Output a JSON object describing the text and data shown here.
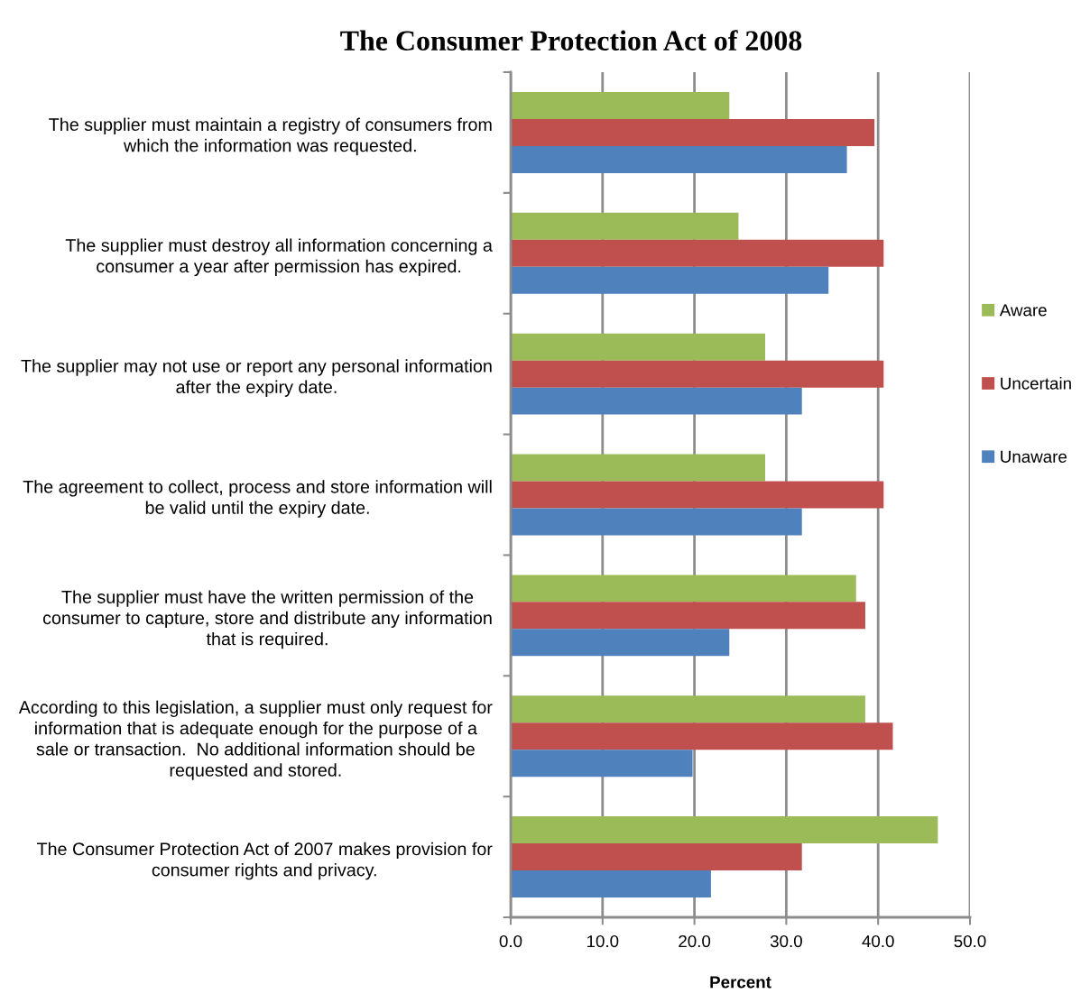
{
  "chart_data": {
    "type": "bar",
    "orientation": "horizontal",
    "title": "The Consumer Protection Act of 2008",
    "xlabel": "Percent",
    "categories": [
      "The supplier must maintain a registry of consumers from\nwhich the information was requested.",
      "The supplier must destroy all information concerning a\nconsumer a year after permission has expired.",
      "The supplier may not use or report any personal information\nafter the expiry date.",
      "The agreement to collect, process and store information will\nbe valid until the expiry date.",
      "The supplier must have the written permission of the\nconsumer to capture, store and distribute any information\nthat is required.",
      "According to this legislation, a supplier must only request for\ninformation that is adequate enough for the purpose of a\nsale or transaction.  No additional information should be\nrequested and stored.",
      "The Consumer Protection Act of 2007 makes provision for\nconsumer rights and privacy."
    ],
    "series": [
      {
        "name": "Aware",
        "color": "#9bbb59",
        "values": [
          23.8,
          24.8,
          27.7,
          27.7,
          37.6,
          38.6,
          46.5
        ]
      },
      {
        "name": "Uncertain",
        "color": "#c0504d",
        "values": [
          39.6,
          40.6,
          40.6,
          40.6,
          38.6,
          41.6,
          31.7
        ]
      },
      {
        "name": "Unaware",
        "color": "#4f81bd",
        "values": [
          36.6,
          34.6,
          31.7,
          31.7,
          23.8,
          19.8,
          21.8
        ]
      }
    ],
    "xlim": [
      0,
      50
    ],
    "xticks": [
      {
        "value": 0,
        "label": "0.0"
      },
      {
        "value": 10,
        "label": "10.0"
      },
      {
        "value": 20,
        "label": "20.0"
      },
      {
        "value": 30,
        "label": "30.0"
      },
      {
        "value": 40,
        "label": "40.0"
      },
      {
        "value": 50,
        "label": "50.0"
      }
    ],
    "grid": "x",
    "legend": "right"
  }
}
